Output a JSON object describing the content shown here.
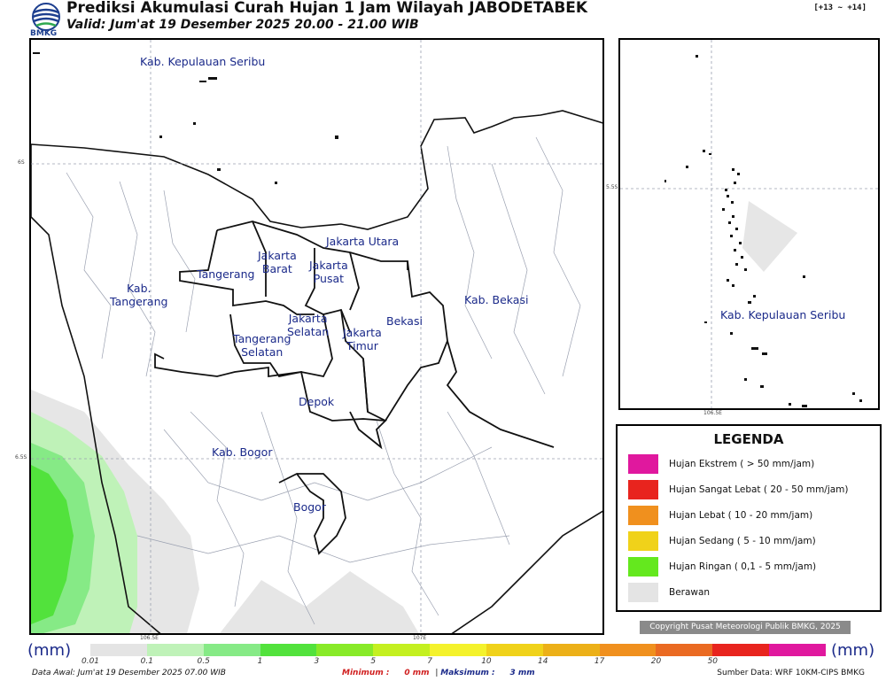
{
  "header": {
    "logo_text": "BMKG",
    "title": "Prediksi Akumulasi Curah Hujan 1 Jam Wilayah JABODETABEK",
    "subtitle": "Valid: Jum'at 19 Desember 2025 20.00 - 21.00 WIB",
    "forecast_range": "[+13 ~ +14]"
  },
  "main_map": {
    "regions": [
      {
        "id": "kep-seribu",
        "name": "Kab. Kepulauan Seribu"
      },
      {
        "id": "jakarta-utara",
        "name": "Jakarta Utara"
      },
      {
        "id": "jakarta-barat",
        "name": "Jakarta\nBarat"
      },
      {
        "id": "jakarta-pusat",
        "name": "Jakarta\nPusat"
      },
      {
        "id": "tangerang",
        "name": "Tangerang"
      },
      {
        "id": "kab-tangerang",
        "name": "Kab.\nTangerang"
      },
      {
        "id": "jakarta-selatan",
        "name": "Jakarta\nSelatan"
      },
      {
        "id": "jakarta-timur",
        "name": "Jakarta\nTimur"
      },
      {
        "id": "bekasi",
        "name": "Bekasi"
      },
      {
        "id": "kab-bekasi",
        "name": "Kab. Bekasi"
      },
      {
        "id": "tangerang-selatan",
        "name": "Tangerang\nSelatan"
      },
      {
        "id": "depok",
        "name": "Depok"
      },
      {
        "id": "kab-bogor",
        "name": "Kab. Bogor"
      },
      {
        "id": "bogor",
        "name": "Bogor"
      }
    ],
    "grid_labels": {
      "lat1": "6S",
      "lat2": "6.5S",
      "lon1": "106.5E",
      "lon2": "107E"
    }
  },
  "inset_map": {
    "region_label": "Kab. Kepulauan Seribu",
    "grid_labels": {
      "lat": "5.5S",
      "lon": "106.5E"
    }
  },
  "legend": {
    "title": "LEGENDA",
    "items": [
      {
        "label": "Hujan Ekstrem ( > 50 mm/jam)",
        "color": "#e0189e"
      },
      {
        "label": "Hujan Sangat Lebat ( 20 - 50 mm/jam)",
        "color": "#e8241e"
      },
      {
        "label": "Hujan Lebat ( 10 - 20 mm/jam)",
        "color": "#f0901e"
      },
      {
        "label": "Hujan Sedang ( 5 - 10 mm/jam)",
        "color": "#f0d21a"
      },
      {
        "label": "Hujan Ringan ( 0,1 - 5 mm/jam)",
        "color": "#64e81e"
      },
      {
        "label": "Berawan",
        "color": "#e4e4e4"
      }
    ]
  },
  "copyright": "Copyright Pusat Meteorologi Publik BMKG, 2025",
  "colorbar": {
    "unit": "(mm)",
    "ticks": [
      "0.01",
      "0.1",
      "0.5",
      "1",
      "3",
      "5",
      "7",
      "10",
      "14",
      "17",
      "20",
      "50"
    ],
    "colors": [
      "#e4e4e4",
      "#bff2b8",
      "#86ea86",
      "#52e23c",
      "#88ea28",
      "#c4f020",
      "#f4f22c",
      "#f0d21a",
      "#ecb018",
      "#f0901e",
      "#ea6a22",
      "#e8241e",
      "#e0189e"
    ]
  },
  "footer": {
    "data_awal": "Data Awal: Jum'at 19 Desember 2025 07.00 WIB",
    "minimum_label": "Minimum :",
    "minimum_value": "0 mm",
    "separator": "|",
    "maximum_label": "Maksimum :",
    "maximum_value": "3 mm",
    "source": "Sumber Data: WRF 10KM-CIPS BMKG"
  }
}
